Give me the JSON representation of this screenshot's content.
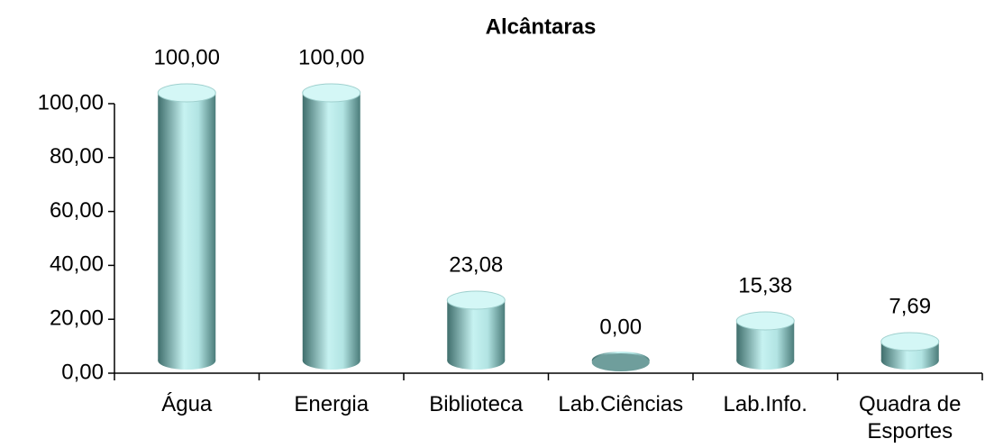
{
  "chart_data": {
    "type": "bar",
    "title": "Alcântaras",
    "categories": [
      "Água",
      "Energia",
      "Biblioteca",
      "Lab.Ciências",
      "Lab.Info.",
      "Quadra de Esportes"
    ],
    "values": [
      100,
      100,
      23.08,
      0,
      15.38,
      7.69
    ],
    "value_labels": [
      "100,00",
      "100,00",
      "23,08",
      "0,00",
      "15,38",
      "7,69"
    ],
    "color": "#8fc9c7",
    "ylim": [
      0,
      100
    ],
    "yticks": [
      {
        "value": 0,
        "label": "0,00"
      },
      {
        "value": 20,
        "label": "20,00"
      },
      {
        "value": 40,
        "label": "40,00"
      },
      {
        "value": 60,
        "label": "60,00"
      },
      {
        "value": 80,
        "label": "80,00"
      },
      {
        "value": 100,
        "label": "100,00"
      }
    ],
    "grid": false
  }
}
